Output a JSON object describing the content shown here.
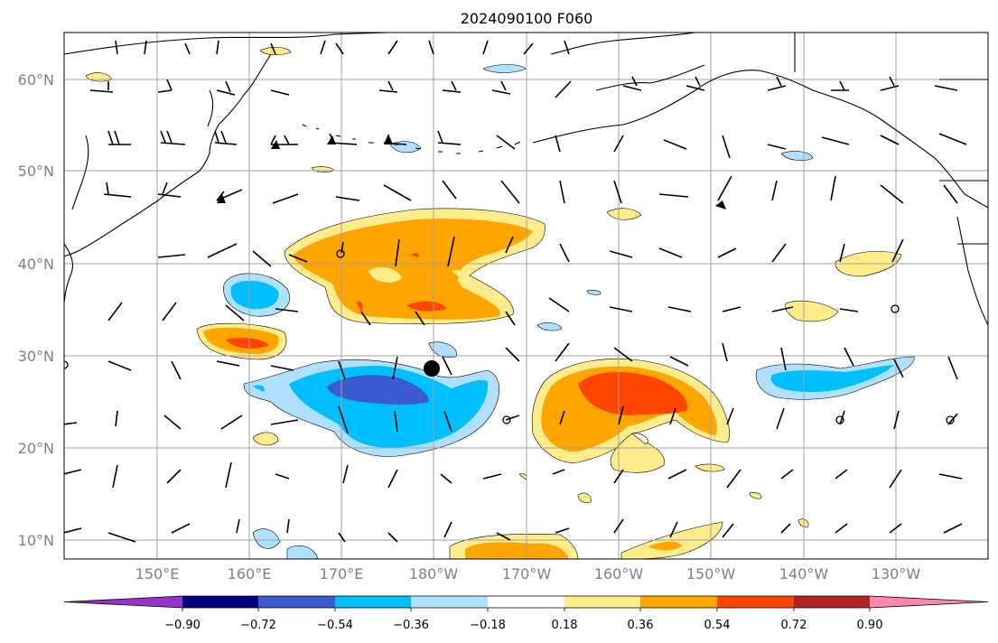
{
  "map": {
    "title": "2024090100 F060",
    "lat_labels": [
      "60°N",
      "50°N",
      "40°N",
      "30°N",
      "20°N",
      "10°N"
    ],
    "lon_labels": [
      "150°E",
      "160°E",
      "170°E",
      "180°W",
      "170°W",
      "160°W",
      "150°W",
      "140°W",
      "130°W"
    ]
  },
  "colorbar": {
    "colors": [
      "#9932cc",
      "#000080",
      "#3a5bd1",
      "#00bfff",
      "#b0e0ff",
      "#ffffff",
      "#ffec8b",
      "#ffa500",
      "#ff4500",
      "#b22222",
      "#ff88aa"
    ],
    "tick_labels": [
      "−0.90",
      "−0.72",
      "−0.54",
      "−0.36",
      "−0.18",
      "0.18",
      "0.36",
      "0.54",
      "0.72",
      "0.90"
    ]
  }
}
